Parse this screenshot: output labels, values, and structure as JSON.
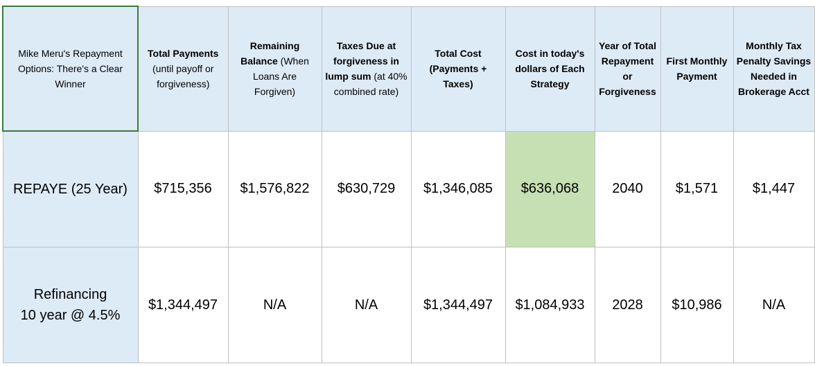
{
  "header": [
    [
      {
        "text": "Mike Meru's Repayment Options: There's a Clear Winner",
        "bold": false
      }
    ],
    [
      {
        "text": "Total Payments",
        "bold": true
      },
      {
        "text": "(until payoff or forgiveness)",
        "bold": false
      }
    ],
    [
      {
        "text": "Remaining Balance",
        "bold": true
      },
      {
        "text": "(When Loans Are Forgiven)",
        "bold": false
      }
    ],
    [
      {
        "text": "Taxes Due at forgiveness in lump sum",
        "bold": true
      },
      {
        "text": "(at 40% combined rate)",
        "bold": false
      }
    ],
    [
      {
        "text": "Total Cost (Payments + Taxes)",
        "bold": true
      }
    ],
    [
      {
        "text": "Cost in today's dollars of Each Strategy",
        "bold": true
      }
    ],
    [
      {
        "text": "Year of Total Repayment or Forgiveness",
        "bold": true
      }
    ],
    [
      {
        "text": "First Monthly Payment",
        "bold": true
      }
    ],
    [
      {
        "text": "Monthly Tax Penalty Savings Needed in Brokerage Acct",
        "bold": true
      }
    ]
  ],
  "rows": [
    {
      "label": [
        "REPAYE (25 Year)"
      ],
      "cells": [
        "$715,356",
        "$1,576,822",
        "$630,729",
        "$1,346,085",
        "$636,068",
        "2040",
        "$1,571",
        "$1,447"
      ]
    },
    {
      "label": [
        "Refinancing",
        "10 year @ 4.5%"
      ],
      "cells": [
        "$1,344,497",
        "N/A",
        "N/A",
        "$1,344,497",
        "$1,084,933",
        "2028",
        "$10,986",
        "N/A"
      ]
    }
  ],
  "highlight": {
    "row": 0,
    "cell": 4,
    "color": "#c6e0b4"
  }
}
